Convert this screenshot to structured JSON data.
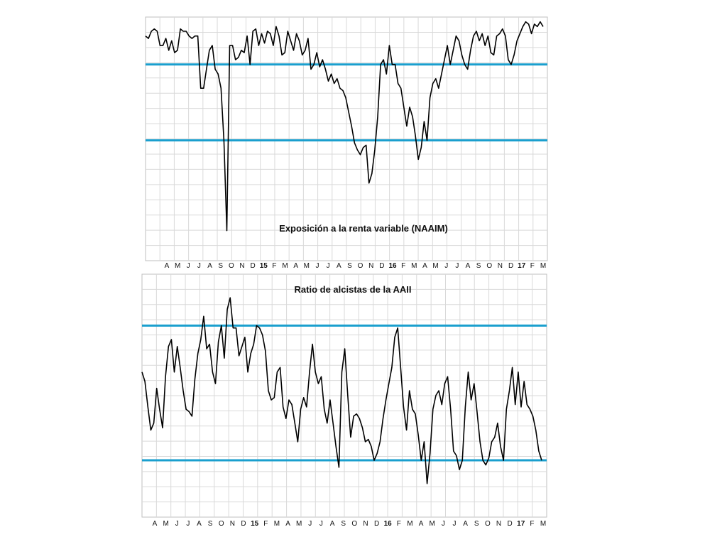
{
  "colors": {
    "series": "#000000",
    "threshold": "#1a9fce",
    "grid": "#d9d9d9",
    "frame": "#bfbfbf"
  },
  "chart_data": [
    {
      "type": "line",
      "title": "Exposición a la renta variable (NAAIM)",
      "xlabel": "",
      "ylabel": "",
      "x_tick_labels": [
        "A",
        "M",
        "J",
        "J",
        "A",
        "S",
        "O",
        "N",
        "D",
        "15",
        "F",
        "M",
        "A",
        "M",
        "J",
        "J",
        "A",
        "S",
        "O",
        "N",
        "D",
        "16",
        "F",
        "M",
        "A",
        "M",
        "J",
        "J",
        "A",
        "S",
        "O",
        "N",
        "D",
        "17",
        "F",
        "M"
      ],
      "year_ticks": [
        "15",
        "16",
        "17"
      ],
      "ylim": [
        0,
        100
      ],
      "grid": true,
      "legend": "none",
      "thresholds": [
        80,
        48
      ],
      "series": [
        {
          "values": [
            92,
            91,
            94,
            95,
            94,
            88,
            88,
            91,
            86,
            90,
            85,
            86,
            95,
            94,
            94,
            92,
            91,
            92,
            92,
            70,
            70,
            78,
            86,
            88,
            78,
            76,
            70,
            48,
            10,
            88,
            88,
            82,
            83,
            86,
            85,
            92,
            80,
            94,
            95,
            88,
            93,
            89,
            94,
            93,
            88,
            96,
            92,
            84,
            85,
            94,
            90,
            86,
            93,
            90,
            84,
            86,
            91,
            78,
            80,
            85,
            79,
            82,
            78,
            73,
            76,
            72,
            74,
            70,
            69,
            66,
            60,
            54,
            47,
            44,
            42,
            45,
            46,
            30,
            34,
            44,
            58,
            80,
            82,
            76,
            88,
            80,
            80,
            72,
            70,
            62,
            54,
            62,
            58,
            50,
            40,
            45,
            56,
            48,
            66,
            72,
            74,
            70,
            76,
            82,
            88,
            80,
            86,
            92,
            90,
            84,
            80,
            78,
            86,
            92,
            94,
            90,
            93,
            88,
            92,
            85,
            84,
            92,
            93,
            95,
            92,
            82,
            80,
            84,
            90,
            93,
            96,
            98,
            97,
            93,
            97,
            96,
            98,
            96
          ]
        }
      ]
    },
    {
      "type": "line",
      "title": "Ratio de alcistas de la AAII",
      "xlabel": "",
      "ylabel": "",
      "x_tick_labels": [
        "A",
        "M",
        "J",
        "J",
        "A",
        "S",
        "O",
        "N",
        "D",
        "15",
        "F",
        "M",
        "A",
        "M",
        "J",
        "J",
        "A",
        "S",
        "O",
        "N",
        "D",
        "16",
        "F",
        "M",
        "A",
        "M",
        "J",
        "J",
        "A",
        "S",
        "O",
        "N",
        "D",
        "17",
        "F",
        "M"
      ],
      "year_ticks": [
        "15",
        "16",
        "17"
      ],
      "ylim": [
        0,
        100
      ],
      "grid": true,
      "legend": "none",
      "thresholds": [
        80,
        22
      ],
      "series": [
        {
          "values": [
            60,
            56,
            45,
            35,
            38,
            53,
            44,
            36,
            58,
            71,
            74,
            60,
            71,
            62,
            52,
            44,
            43,
            41,
            57,
            68,
            74,
            84,
            70,
            72,
            60,
            55,
            73,
            80,
            66,
            87,
            92,
            79,
            79,
            67,
            71,
            75,
            60,
            68,
            72,
            80,
            79,
            76,
            69,
            52,
            48,
            49,
            60,
            62,
            45,
            40,
            48,
            46,
            38,
            30,
            44,
            49,
            45,
            60,
            72,
            60,
            55,
            58,
            44,
            38,
            48,
            38,
            28,
            19,
            60,
            70,
            50,
            32,
            41,
            42,
            40,
            36,
            30,
            31,
            28,
            22,
            25,
            30,
            40,
            48,
            55,
            62,
            75,
            79,
            62,
            45,
            35,
            52,
            44,
            42,
            33,
            22,
            30,
            12,
            25,
            44,
            50,
            52,
            46,
            55,
            58,
            44,
            26,
            24,
            18,
            22,
            45,
            60,
            48,
            55,
            43,
            30,
            22,
            20,
            23,
            30,
            32,
            38,
            28,
            22,
            44,
            52,
            62,
            46,
            60,
            45,
            56,
            46,
            44,
            41,
            35,
            26,
            22
          ]
        }
      ]
    }
  ]
}
